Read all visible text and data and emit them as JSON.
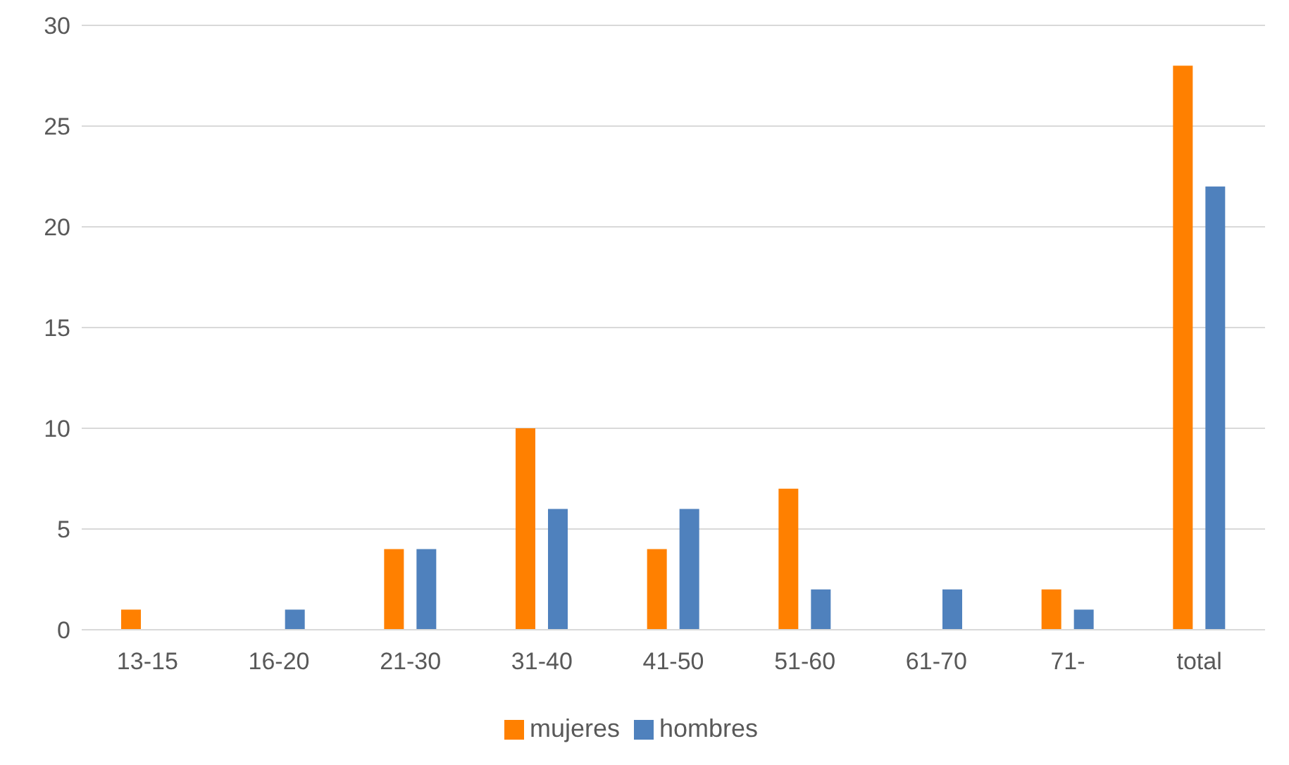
{
  "chart_data": {
    "type": "bar",
    "categories": [
      "13-15",
      "16-20",
      "21-30",
      "31-40",
      "41-50",
      "51-60",
      "61-70",
      "71-",
      "total"
    ],
    "series": [
      {
        "name": "mujeres",
        "color": "#ff8000",
        "values": [
          1,
          0,
          4,
          10,
          4,
          7,
          0,
          2,
          28
        ]
      },
      {
        "name": "hombres",
        "color": "#4f81bd",
        "values": [
          0,
          1,
          4,
          6,
          6,
          2,
          2,
          1,
          22
        ]
      }
    ],
    "ylim": [
      0,
      30
    ],
    "yticks": [
      0,
      5,
      10,
      15,
      20,
      25,
      30
    ],
    "grid": "y",
    "legend": "bottom"
  }
}
